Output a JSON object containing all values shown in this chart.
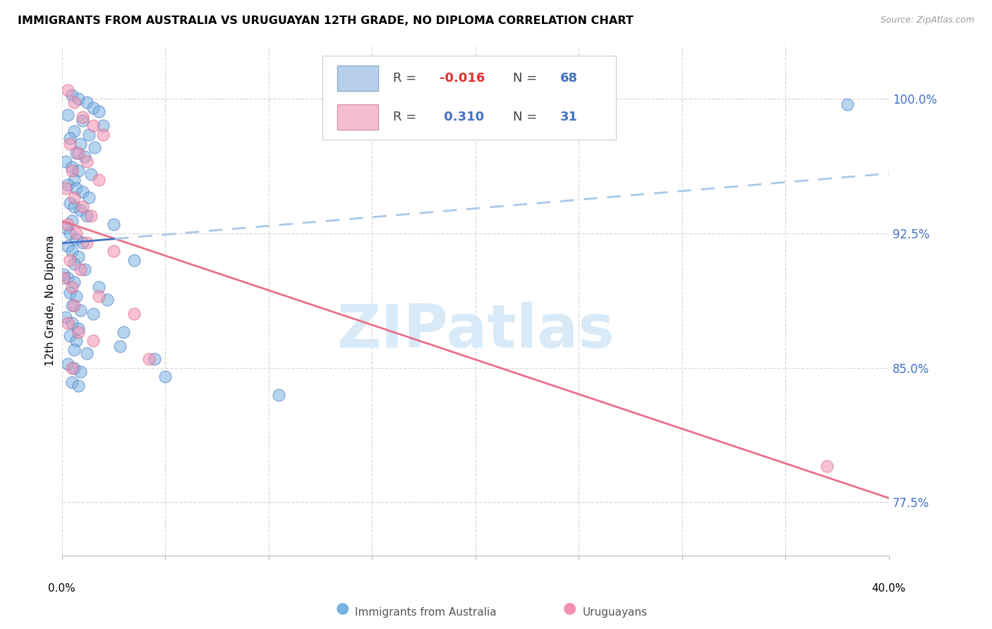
{
  "title": "IMMIGRANTS FROM AUSTRALIA VS URUGUAYAN 12TH GRADE, NO DIPLOMA CORRELATION CHART",
  "source": "Source: ZipAtlas.com",
  "ylabel": "12th Grade, No Diploma",
  "ytick_values": [
    77.5,
    85.0,
    92.5,
    100.0
  ],
  "xmin": 0.0,
  "xmax": 40.0,
  "ymin": 74.5,
  "ymax": 103.0,
  "blue_x": [
    0.5,
    0.8,
    1.2,
    1.5,
    1.8,
    0.3,
    1.0,
    2.0,
    0.6,
    1.3,
    0.4,
    0.9,
    1.6,
    0.7,
    1.1,
    0.2,
    0.5,
    0.8,
    1.4,
    0.6,
    0.3,
    0.7,
    1.0,
    1.3,
    0.4,
    0.6,
    0.9,
    1.2,
    0.5,
    2.5,
    0.2,
    0.4,
    0.7,
    1.0,
    0.3,
    0.5,
    0.8,
    3.5,
    0.6,
    1.1,
    0.1,
    0.3,
    0.6,
    1.8,
    0.4,
    0.7,
    2.2,
    0.5,
    0.9,
    1.5,
    0.2,
    0.5,
    0.8,
    3.0,
    0.4,
    0.7,
    2.8,
    0.6,
    1.2,
    4.5,
    0.3,
    0.6,
    0.9,
    5.0,
    0.5,
    0.8,
    10.5,
    38.0
  ],
  "blue_y": [
    100.2,
    100.0,
    99.8,
    99.5,
    99.3,
    99.1,
    98.8,
    98.5,
    98.2,
    98.0,
    97.8,
    97.5,
    97.3,
    97.0,
    96.8,
    96.5,
    96.2,
    96.0,
    95.8,
    95.5,
    95.2,
    95.0,
    94.8,
    94.5,
    94.2,
    94.0,
    93.8,
    93.5,
    93.2,
    93.0,
    92.8,
    92.5,
    92.2,
    92.0,
    91.8,
    91.5,
    91.2,
    91.0,
    90.8,
    90.5,
    90.2,
    90.0,
    89.8,
    89.5,
    89.2,
    89.0,
    88.8,
    88.5,
    88.2,
    88.0,
    87.8,
    87.5,
    87.2,
    87.0,
    86.8,
    86.5,
    86.2,
    86.0,
    85.8,
    85.5,
    85.2,
    85.0,
    84.8,
    84.5,
    84.2,
    84.0,
    83.5,
    99.7
  ],
  "pink_x": [
    0.3,
    0.6,
    1.0,
    1.5,
    2.0,
    0.4,
    0.8,
    1.2,
    0.5,
    1.8,
    0.2,
    0.6,
    1.0,
    1.4,
    0.3,
    0.7,
    1.2,
    2.5,
    0.4,
    0.9,
    0.1,
    0.5,
    1.8,
    0.6,
    3.5,
    0.3,
    0.8,
    1.5,
    4.2,
    0.5,
    37.0
  ],
  "pink_y": [
    100.5,
    99.8,
    99.0,
    98.5,
    98.0,
    97.5,
    97.0,
    96.5,
    96.0,
    95.5,
    95.0,
    94.5,
    94.0,
    93.5,
    93.0,
    92.5,
    92.0,
    91.5,
    91.0,
    90.5,
    90.0,
    89.5,
    89.0,
    88.5,
    88.0,
    87.5,
    87.0,
    86.5,
    85.5,
    85.0,
    79.5
  ],
  "blue_color": "#7ab3e0",
  "blue_edge_color": "#4472c4",
  "pink_color": "#f48fb1",
  "pink_edge_color": "#d46080",
  "blue_line_color": "#4472c4",
  "blue_dash_color": "#a8c8e8",
  "pink_line_color": "#e8708a",
  "watermark_text": "ZIPatlas",
  "watermark_color": "#d8eaf8",
  "R_blue": -0.016,
  "N_blue": 68,
  "R_pink": 0.31,
  "N_pink": 31,
  "legend_blue_face": "#b8d0ec",
  "legend_blue_edge": "#8aaecc",
  "legend_pink_face": "#f4c0d0",
  "legend_pink_edge": "#d890a8",
  "R_color_blue": "#e03030",
  "R_color_pink": "#4472c4",
  "N_color": "#4472c4",
  "grid_color": "#d8d8d8"
}
